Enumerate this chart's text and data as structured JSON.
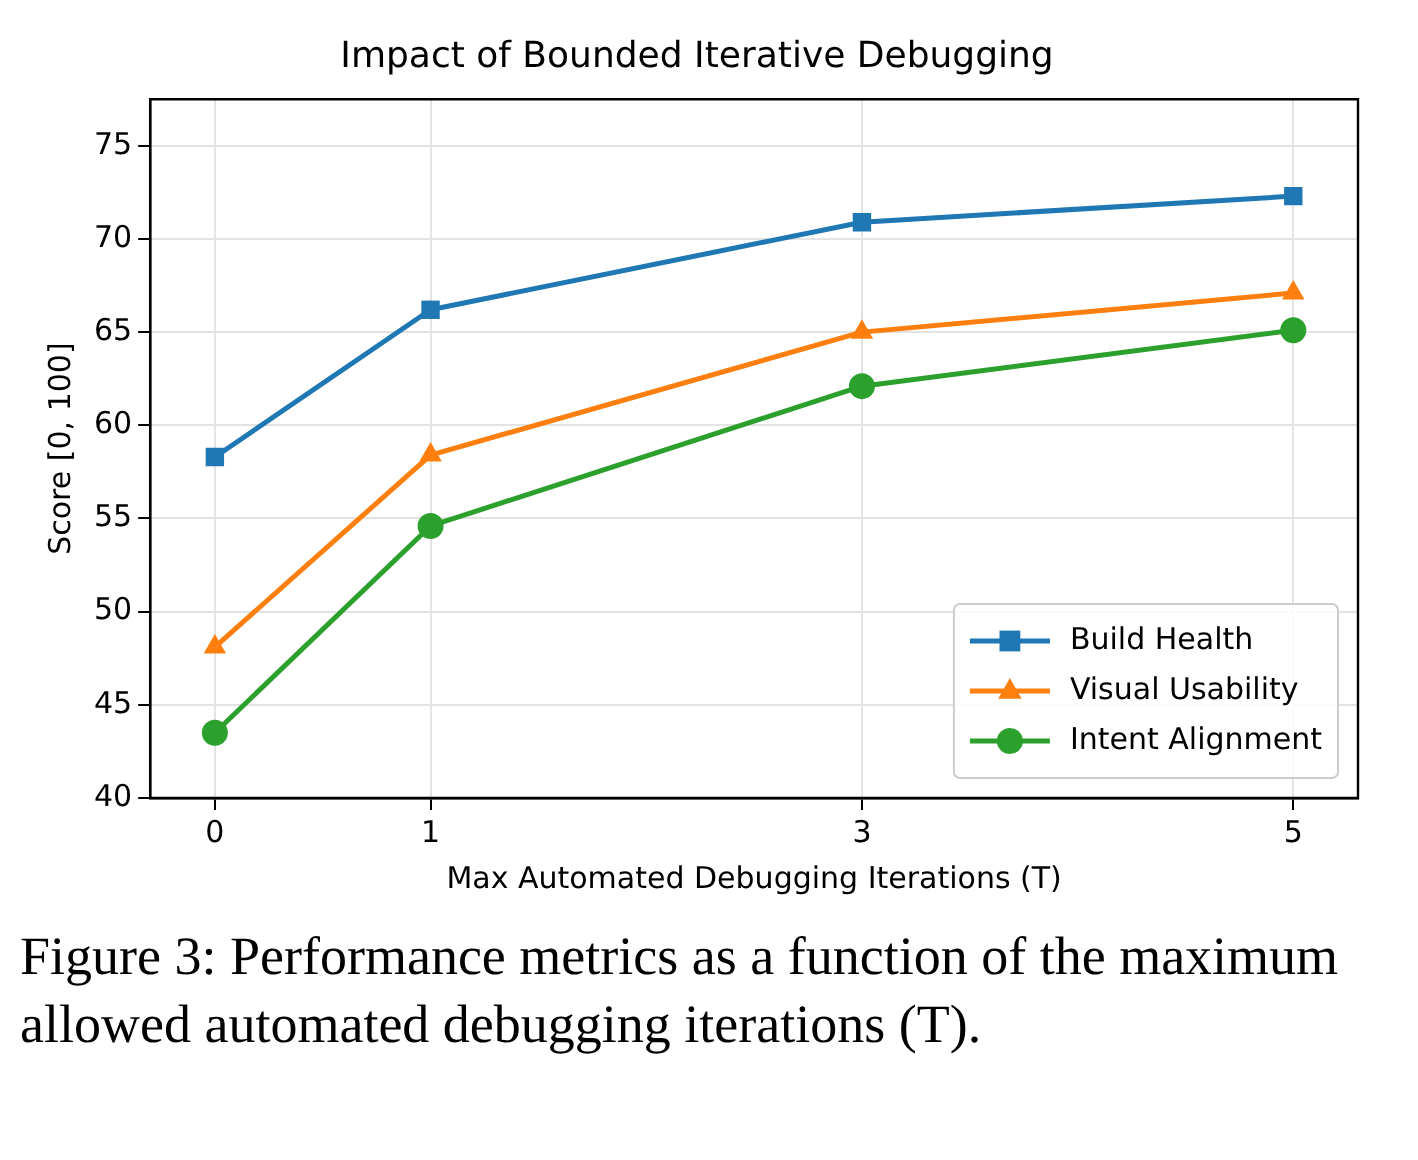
{
  "chart_data": {
    "type": "line",
    "title": "Impact of Bounded Iterative Debugging",
    "xlabel": "Max Automated Debugging Iterations (T)",
    "ylabel": "Score [0, 100]",
    "x": [
      0,
      1,
      3,
      5
    ],
    "xlim": [
      -0.3,
      5.3
    ],
    "xticks": [
      0,
      1,
      3,
      5
    ],
    "ylim": [
      40,
      77.5
    ],
    "yticks": [
      40,
      45,
      50,
      55,
      60,
      65,
      70,
      75
    ],
    "grid": true,
    "legend": "bottom right",
    "line_style": "solid",
    "series": [
      {
        "name": "Build Health",
        "color": "#1f77b4",
        "marker": "square",
        "values": [
          58.3,
          66.2,
          70.9,
          72.3
        ]
      },
      {
        "name": "Visual Usability",
        "color": "#ff7f0e",
        "marker": "triangle",
        "values": [
          48.1,
          58.4,
          65.0,
          67.1
        ]
      },
      {
        "name": "Intent Alignment",
        "color": "#2ca02c",
        "marker": "circle",
        "values": [
          43.5,
          54.6,
          62.1,
          65.1
        ]
      }
    ],
    "annotations": [
      "Figure 3: Performance metrics as a function of the maximum allowed automated debugging iterations (T)."
    ]
  }
}
